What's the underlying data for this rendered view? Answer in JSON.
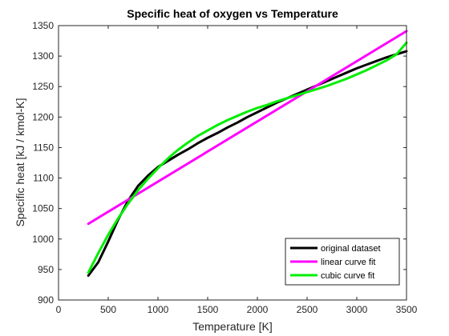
{
  "chart_data": {
    "type": "line",
    "title": "Specific heat of oxygen vs Temperature",
    "xlabel": "Temperature [K]",
    "ylabel": "Specific heat [kJ / kmol-K]",
    "xlim": [
      0,
      3500
    ],
    "ylim": [
      900,
      1350
    ],
    "xticks": [
      0,
      500,
      1000,
      1500,
      2000,
      2500,
      3000,
      3500
    ],
    "yticks": [
      900,
      950,
      1000,
      1050,
      1100,
      1150,
      1200,
      1250,
      1300,
      1350
    ],
    "grid": false,
    "legend_position": "bottom-right",
    "series": [
      {
        "name": "original dataset",
        "color": "#000000",
        "x": [
          300,
          400,
          500,
          600,
          700,
          800,
          900,
          1000,
          1100,
          1200,
          1300,
          1400,
          1500,
          1600,
          1700,
          1800,
          1900,
          2000,
          2100,
          2200,
          2300,
          2400,
          2500,
          2600,
          2700,
          2800,
          2900,
          3000,
          3100,
          3200,
          3300,
          3400,
          3500
        ],
        "y": [
          940,
          962,
          996,
          1032,
          1063,
          1087,
          1104,
          1118,
          1128,
          1138,
          1147,
          1157,
          1166,
          1174,
          1183,
          1191,
          1200,
          1208,
          1216,
          1224,
          1231,
          1238,
          1245,
          1252,
          1259,
          1266,
          1273,
          1280,
          1286,
          1292,
          1298,
          1303,
          1308
        ]
      },
      {
        "name": "linear curve fit",
        "color": "#ff00ff",
        "x": [
          300,
          3500
        ],
        "y": [
          1025,
          1341
        ]
      },
      {
        "name": "cubic curve fit",
        "color": "#00ee00",
        "x": [
          300,
          400,
          500,
          600,
          700,
          800,
          900,
          1000,
          1100,
          1200,
          1300,
          1400,
          1500,
          1600,
          1700,
          1800,
          1900,
          2000,
          2100,
          2200,
          2300,
          2400,
          2500,
          2600,
          2700,
          2800,
          2900,
          3000,
          3100,
          3200,
          3300,
          3400,
          3500
        ],
        "y": [
          945,
          977,
          1007,
          1034,
          1058,
          1080,
          1099,
          1116,
          1132,
          1146,
          1158,
          1169,
          1178,
          1187,
          1195,
          1202,
          1209,
          1215,
          1220,
          1226,
          1231,
          1236,
          1241,
          1246,
          1251,
          1257,
          1263,
          1270,
          1277,
          1285,
          1293,
          1303,
          1322
        ]
      }
    ]
  }
}
